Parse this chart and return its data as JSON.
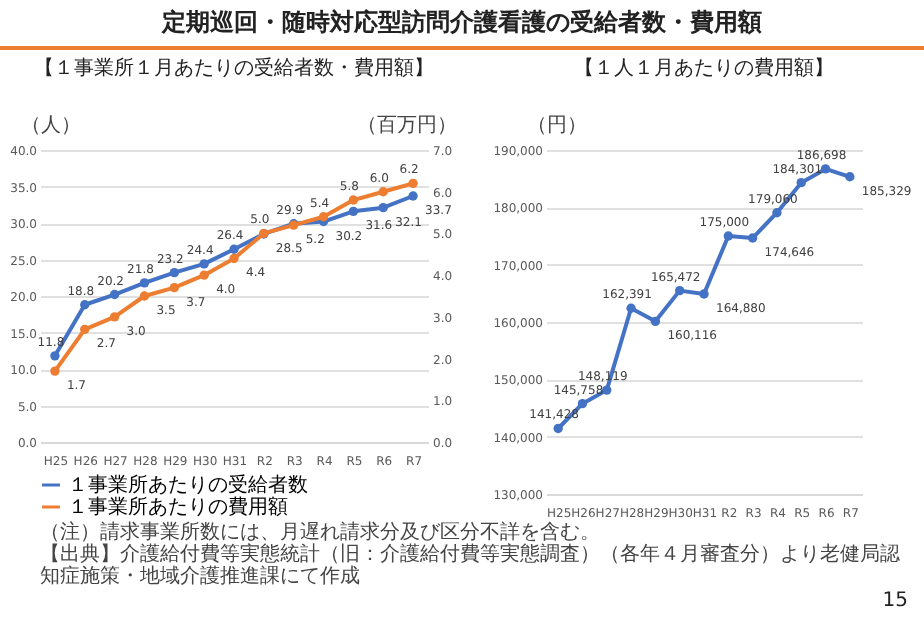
{
  "chart_data": [
    {
      "type": "line",
      "title": "定期巡回・随時対応型訪問介護看護の受給者数・費用額",
      "subtitle": "【１事業所１月あたりの受給者数・費用額】",
      "ylabel": "（人）",
      "y2label": "（百万円）",
      "categories": [
        "H25",
        "H26",
        "H27",
        "H28",
        "H29",
        "H30",
        "H31",
        "R2",
        "R3",
        "R4",
        "R5",
        "R6",
        "R7"
      ],
      "series": [
        {
          "name": "１事業所あたりの受給者数",
          "color": "#4472c4",
          "values": [
            11.8,
            18.8,
            20.2,
            21.8,
            23.2,
            24.4,
            26.4,
            28.5,
            29.9,
            30.2,
            31.6,
            32.1,
            33.7
          ],
          "value_labels": [
            "11.8",
            "18.8",
            "20.2",
            "21.8",
            "23.2",
            "24.4",
            "26.4",
            "28.5",
            "29.9",
            "30.2",
            "31.6",
            "32.1",
            "33.7"
          ]
        },
        {
          "name": "１事業所あたりの費用額",
          "color": "#ed7d31",
          "axis": "y2",
          "values": [
            1.7,
            2.7,
            3.0,
            3.5,
            3.7,
            4.0,
            4.4,
            5.0,
            5.2,
            5.4,
            5.8,
            6.0,
            6.2
          ],
          "value_labels": [
            "1.7",
            "2.7",
            "3.0",
            "3.5",
            "3.7",
            "4.0",
            "4.4",
            "5.0",
            "5.2",
            "5.4",
            "5.8",
            "6.0",
            "6.2"
          ]
        }
      ],
      "ylim": [
        0,
        40
      ],
      "yticks": [
        {
          "value": 0,
          "label": "0.0"
        },
        {
          "value": 5,
          "label": "5.0"
        },
        {
          "value": 10,
          "label": "10.0"
        },
        {
          "value": 15,
          "label": "15.0"
        },
        {
          "value": 20,
          "label": "20.0"
        },
        {
          "value": 25,
          "label": "25.0"
        },
        {
          "value": 30,
          "label": "30.0"
        },
        {
          "value": 35,
          "label": "35.0"
        },
        {
          "value": 40,
          "label": "40.0"
        }
      ],
      "y2lim": [
        0,
        7
      ],
      "y2ticks": [
        {
          "value": 0,
          "label": "0.0"
        },
        {
          "value": 1,
          "label": "1.0"
        },
        {
          "value": 2,
          "label": "2.0"
        },
        {
          "value": 3,
          "label": "3.0"
        },
        {
          "value": 4,
          "label": "4.0"
        },
        {
          "value": 5,
          "label": "5.0"
        },
        {
          "value": 6,
          "label": "6.0"
        },
        {
          "value": 7,
          "label": "7.0"
        }
      ],
      "grid": "y",
      "legend": "bottom",
      "marker": "circle",
      "annotations": [
        "（注）請求事業所数には、月遅れ請求分及び区分不詳を含む。",
        "【出典】介護給付費等実態統計（旧：介護給付費等実態調査）（各年４月審査分）より老健局認知症施策・地域介護推進課にて作成"
      ]
    },
    {
      "type": "line",
      "subtitle": "【１人１月あたりの費用額】",
      "ylabel": "（円）",
      "categories": [
        "H25",
        "H26",
        "H27",
        "H28",
        "H29",
        "H30",
        "H31",
        "R2",
        "R3",
        "R4",
        "R5",
        "R6",
        "R7"
      ],
      "series": [
        {
          "color": "#4472c4",
          "values": [
            141428,
            145758,
            148119,
            162391,
            160116,
            165472,
            164880,
            175000,
            174646,
            179060,
            184301,
            186698,
            185329
          ],
          "value_labels": [
            "141,428",
            "145,758",
            "148,119",
            "162,391",
            "160,116",
            "165,472",
            "164,880",
            "175,000",
            "174,646",
            "179,060",
            "184,301",
            "186,698",
            "185,329"
          ]
        }
      ],
      "ylim": [
        130000,
        190000
      ],
      "yticks": [
        {
          "value": 130000,
          "label": "130,000"
        },
        {
          "value": 140000,
          "label": "140,000"
        },
        {
          "value": 150000,
          "label": "150,000"
        },
        {
          "value": 160000,
          "label": "160,000"
        },
        {
          "value": 170000,
          "label": "170,000"
        },
        {
          "value": 180000,
          "label": "180,000"
        },
        {
          "value": 190000,
          "label": "190,000"
        }
      ],
      "grid": "y",
      "marker": "circle",
      "annotations": [
        "15"
      ]
    }
  ]
}
